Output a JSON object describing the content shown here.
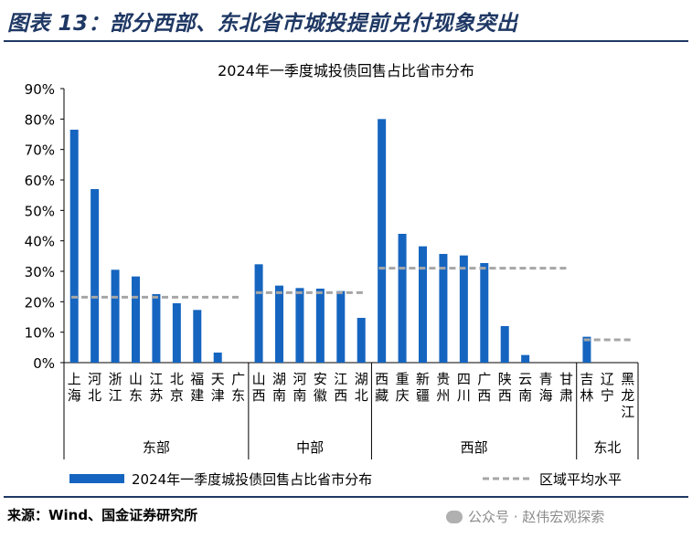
{
  "figure_title": "图表 13：部分西部、东北省市城投提前兑付现象突出",
  "source": "来源：Wind、国金证券研究所",
  "watermark": "公众号 · 赵伟宏观探索",
  "chart_data": {
    "type": "bar",
    "title": "2024年一季度城投债回售占比省市分布",
    "ylim": [
      0,
      90
    ],
    "yticks": [
      "0%",
      "10%",
      "20%",
      "30%",
      "40%",
      "50%",
      "60%",
      "70%",
      "80%",
      "90%"
    ],
    "legend": {
      "bar": "2024年一季度城投债回售占比省市分布",
      "line": "区域平均水平",
      "placement": "bottom"
    },
    "colors": {
      "bar": "#1565c0",
      "avg_line": "#a6a6a6",
      "title": "#1f3864"
    },
    "groups": [
      {
        "name": "东部",
        "avg": 21.5,
        "categories": [
          "上海",
          "河北",
          "浙江",
          "山东",
          "江苏",
          "北京",
          "福建",
          "天津",
          "广东"
        ],
        "values": [
          76.5,
          57,
          30.5,
          28.3,
          22.5,
          19.5,
          17.3,
          3.3,
          0
        ]
      },
      {
        "name": "中部",
        "avg": 23,
        "categories": [
          "山西",
          "湖南",
          "河南",
          "安徽",
          "江西",
          "湖北"
        ],
        "values": [
          32.3,
          25.3,
          24.5,
          24.3,
          23.5,
          14.7
        ]
      },
      {
        "name": "西部",
        "avg": 31,
        "categories": [
          "西藏",
          "重庆",
          "新疆",
          "贵州",
          "四川",
          "广西",
          "陕西",
          "云南",
          "青海",
          "甘肃"
        ],
        "values": [
          80,
          42.3,
          38.2,
          35.7,
          35.2,
          32.7,
          12,
          2.5,
          0,
          0
        ]
      },
      {
        "name": "东北",
        "avg": 7.5,
        "categories": [
          "吉林",
          "辽宁",
          "黑龙江"
        ],
        "values": [
          8.5,
          0,
          0
        ]
      }
    ]
  }
}
